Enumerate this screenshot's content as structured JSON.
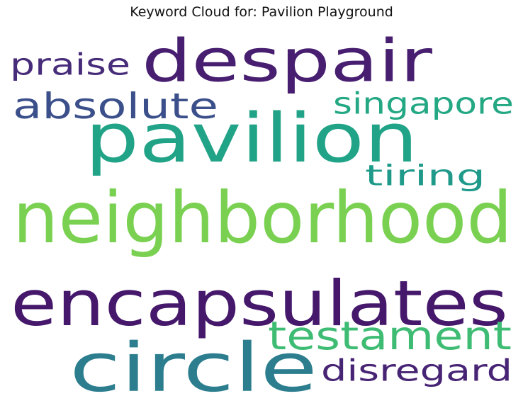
{
  "title": "Keyword Cloud for: Pavilion Playground",
  "words": [
    {
      "id": "despair",
      "text": "despair",
      "color": "#481f70"
    },
    {
      "id": "praise",
      "text": "praise",
      "color": "#472c7a"
    },
    {
      "id": "absolute",
      "text": "absolute",
      "color": "#3b4f8a"
    },
    {
      "id": "singapore",
      "text": "singapore",
      "color": "#24a884"
    },
    {
      "id": "pavilion",
      "text": "pavilion",
      "color": "#20a386"
    },
    {
      "id": "tiring",
      "text": "tiring",
      "color": "#1f9a8a"
    },
    {
      "id": "neighborhood",
      "text": "neighborhood",
      "color": "#7ad151"
    },
    {
      "id": "encapsulates",
      "text": "encapsulates",
      "color": "#46186b"
    },
    {
      "id": "testament",
      "text": "testament",
      "color": "#3fbc73"
    },
    {
      "id": "circle",
      "text": "circle",
      "color": "#2c7e8e"
    },
    {
      "id": "disregard",
      "text": "disregard",
      "color": "#482475"
    }
  ]
}
